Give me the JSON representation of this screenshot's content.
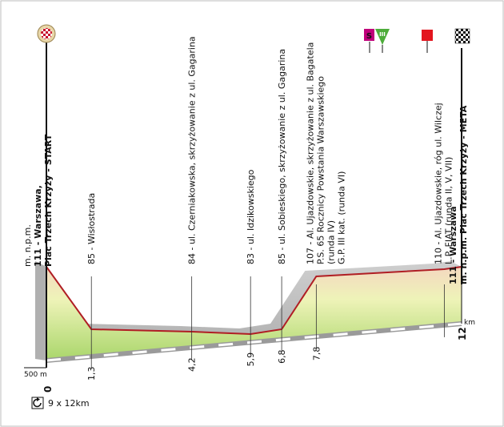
{
  "profile": {
    "total_km": 12,
    "km_unit": "km",
    "height_scale_label": "500 m",
    "laps_label": "9 x 12km",
    "profile_points": [
      {
        "km": 0,
        "alt": 111
      },
      {
        "km": 1.3,
        "alt": 85
      },
      {
        "km": 4.2,
        "alt": 84
      },
      {
        "km": 5.9,
        "alt": 83
      },
      {
        "km": 6.8,
        "alt": 85
      },
      {
        "km": 7.8,
        "alt": 107
      },
      {
        "km": 11.5,
        "alt": 110
      },
      {
        "km": 12,
        "alt": 111
      }
    ],
    "start": {
      "km_label": "0",
      "line1": "m. n.p.m.",
      "line2": "111 - Warszawa,",
      "line3": "Plac Trzech Krzyży - START"
    },
    "finish": {
      "km_label": "12",
      "line1": "111 - Warszawa",
      "line2": "m. n.p.m. Plac Trzech Krzyży - META"
    },
    "waypoints": [
      {
        "km_label": "1,3",
        "line1": "85 - Wisłostrada",
        "line2": ""
      },
      {
        "km_label": "4,2",
        "line1": "84 - ul. Czerniakowska, skrzyżowanie z ul. Gagarina",
        "line2": ""
      },
      {
        "km_label": "5,9",
        "line1": "83 - ul. Idzikowskiego",
        "line2": ""
      },
      {
        "km_label": "6,8",
        "line1": "85 - ul. Sobieskiego, skrzyżowanie z ul. Gagarina",
        "line2": ""
      },
      {
        "km_label": "7,8",
        "line1": "107 - Al. Ujazdowskie, skrzyżowanie z ul. Bagatela",
        "line2": "P.S. 65 Rocznicy Powstania Warszawskiego",
        "line3": "(runda IV)",
        "line4": "G.P. III kat. (runda VI)"
      },
      {
        "km_label": "",
        "line1": "110 - Al. Ujazdowskie, róg ul. Wilczej",
        "line2": "L.P. FIAT (runda II, V, VII)"
      }
    ],
    "icons": {
      "sprint": "S",
      "climb_category": "III"
    },
    "colors": {
      "profile_line": "#b01e24",
      "sprint": "#c0007a",
      "climb": "#4dac3a",
      "flag_red": "#e3151e"
    }
  }
}
